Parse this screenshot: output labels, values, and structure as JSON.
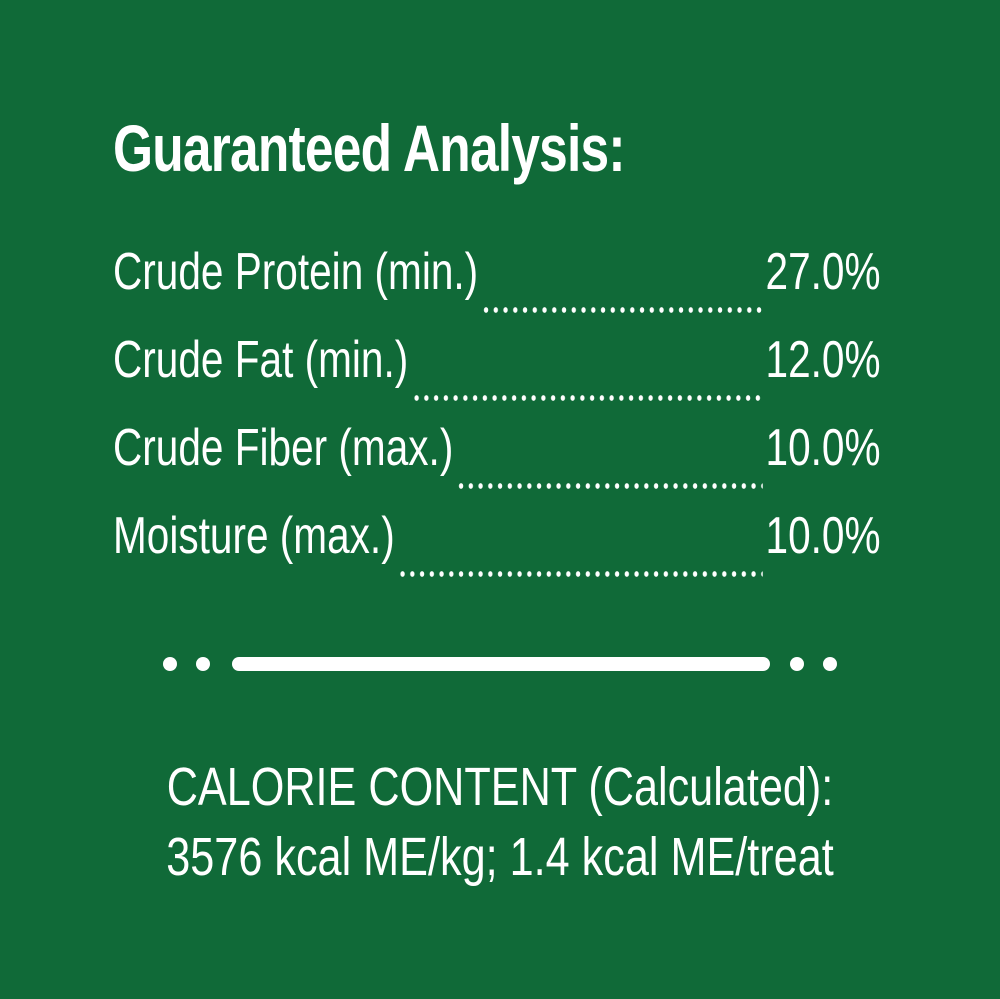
{
  "title": "Guaranteed Analysis:",
  "rows": [
    {
      "label": "Crude Protein (min.)",
      "value": "27.0%"
    },
    {
      "label": "Crude Fat (min.)",
      "value": "12.0%"
    },
    {
      "label": "Crude Fiber (max.)",
      "value": "10.0%"
    },
    {
      "label": "Moisture (max.)",
      "value": "10.0%"
    }
  ],
  "calorie": {
    "line1": "CALORIE CONTENT (Calculated):",
    "line2": "3576 kcal ME/kg; 1.4 kcal ME/treat"
  },
  "colors": {
    "background": "#106a38",
    "text": "#ffffff"
  }
}
